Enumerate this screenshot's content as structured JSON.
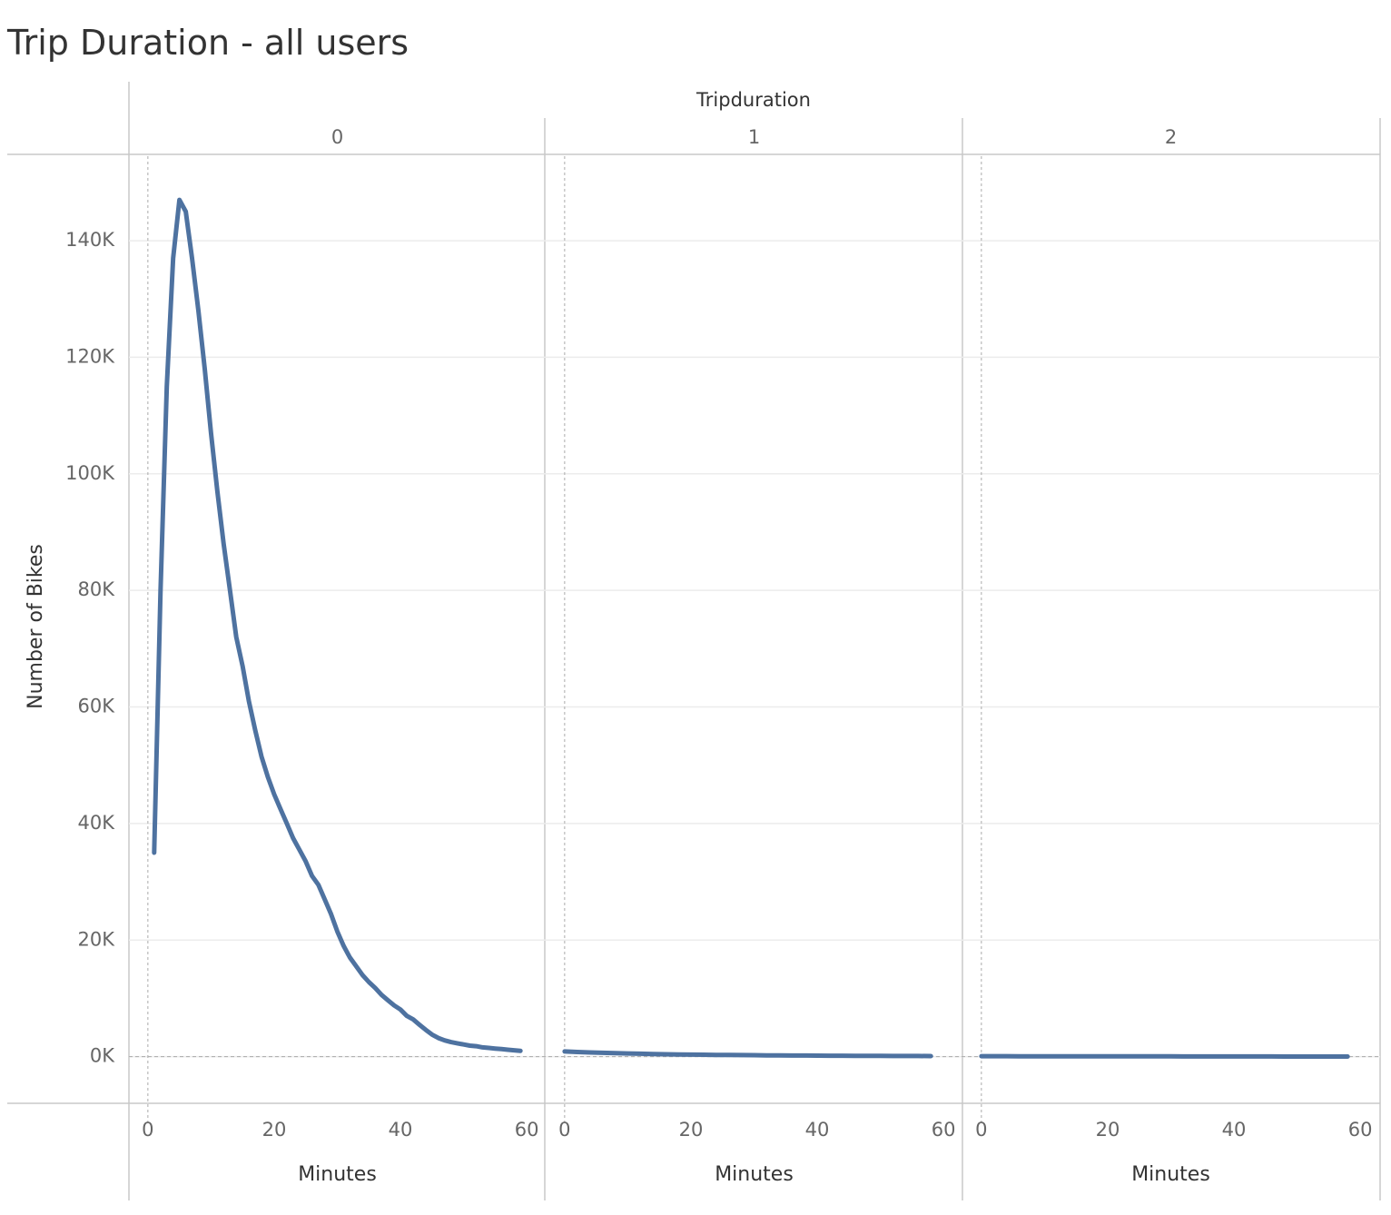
{
  "chart_data": {
    "type": "line",
    "title": "Trip Duration - all users",
    "column_header": "Tripduration",
    "y_label": "Number of Bikes",
    "x_label": "Minutes",
    "color": "#4e72a0",
    "grid": true,
    "xlim": [
      -3,
      63
    ],
    "xticks": [
      0,
      20,
      40,
      60
    ],
    "ylim": [
      -8000,
      154500
    ],
    "yticks": [
      {
        "value": 0,
        "label": "0K"
      },
      {
        "value": 20000,
        "label": "20K"
      },
      {
        "value": 40000,
        "label": "40K"
      },
      {
        "value": 60000,
        "label": "60K"
      },
      {
        "value": 80000,
        "label": "80K"
      },
      {
        "value": 100000,
        "label": "100K"
      },
      {
        "value": 120000,
        "label": "120K"
      },
      {
        "value": 140000,
        "label": "140K"
      }
    ],
    "panels": [
      {
        "name": "0",
        "x": [
          1,
          2,
          3,
          4,
          5,
          6,
          7,
          8,
          9,
          10,
          11,
          12,
          13,
          14,
          15,
          16,
          17,
          18,
          19,
          20,
          21,
          22,
          23,
          24,
          25,
          26,
          27,
          28,
          29,
          30,
          31,
          32,
          33,
          34,
          35,
          36,
          37,
          38,
          39,
          40,
          41,
          42,
          43,
          44,
          45,
          46,
          47,
          48,
          49,
          50,
          51,
          52,
          53,
          54,
          55,
          56,
          57,
          58,
          59
        ],
        "values": [
          35000,
          80000,
          115000,
          137000,
          147000,
          145000,
          137000,
          128000,
          118000,
          107000,
          97000,
          88000,
          80000,
          72000,
          67000,
          61000,
          56000,
          51500,
          48000,
          45000,
          42500,
          40000,
          37500,
          35500,
          33500,
          31000,
          29500,
          27000,
          24500,
          21500,
          19000,
          17000,
          15500,
          14000,
          12800,
          11800,
          10600,
          9700,
          8800,
          8100,
          7000,
          6400,
          5500,
          4600,
          3800,
          3200,
          2800,
          2500,
          2300,
          2100,
          1900,
          1800,
          1600,
          1500,
          1400,
          1300,
          1200,
          1100,
          1000
        ]
      },
      {
        "name": "1",
        "x": [
          0,
          2,
          4,
          6,
          8,
          10,
          12,
          14,
          16,
          18,
          20,
          22,
          24,
          26,
          28,
          30,
          32,
          34,
          36,
          38,
          40,
          42,
          44,
          46,
          48,
          50,
          52,
          54,
          56,
          58
        ],
        "values": [
          900,
          800,
          720,
          660,
          600,
          550,
          500,
          460,
          420,
          385,
          355,
          330,
          310,
          290,
          270,
          250,
          230,
          215,
          200,
          190,
          180,
          170,
          160,
          150,
          140,
          130,
          120,
          115,
          110,
          100
        ]
      },
      {
        "name": "2",
        "x": [
          0,
          2,
          4,
          6,
          8,
          10,
          12,
          14,
          16,
          18,
          20,
          22,
          24,
          26,
          28,
          30,
          32,
          34,
          36,
          38,
          40,
          42,
          44,
          46,
          48,
          50,
          52,
          54,
          56,
          58
        ],
        "values": [
          90,
          85,
          80,
          78,
          75,
          72,
          70,
          68,
          65,
          62,
          60,
          58,
          55,
          52,
          50,
          48,
          46,
          44,
          42,
          40,
          38,
          36,
          34,
          32,
          30,
          28,
          27,
          26,
          25,
          24
        ]
      }
    ]
  }
}
